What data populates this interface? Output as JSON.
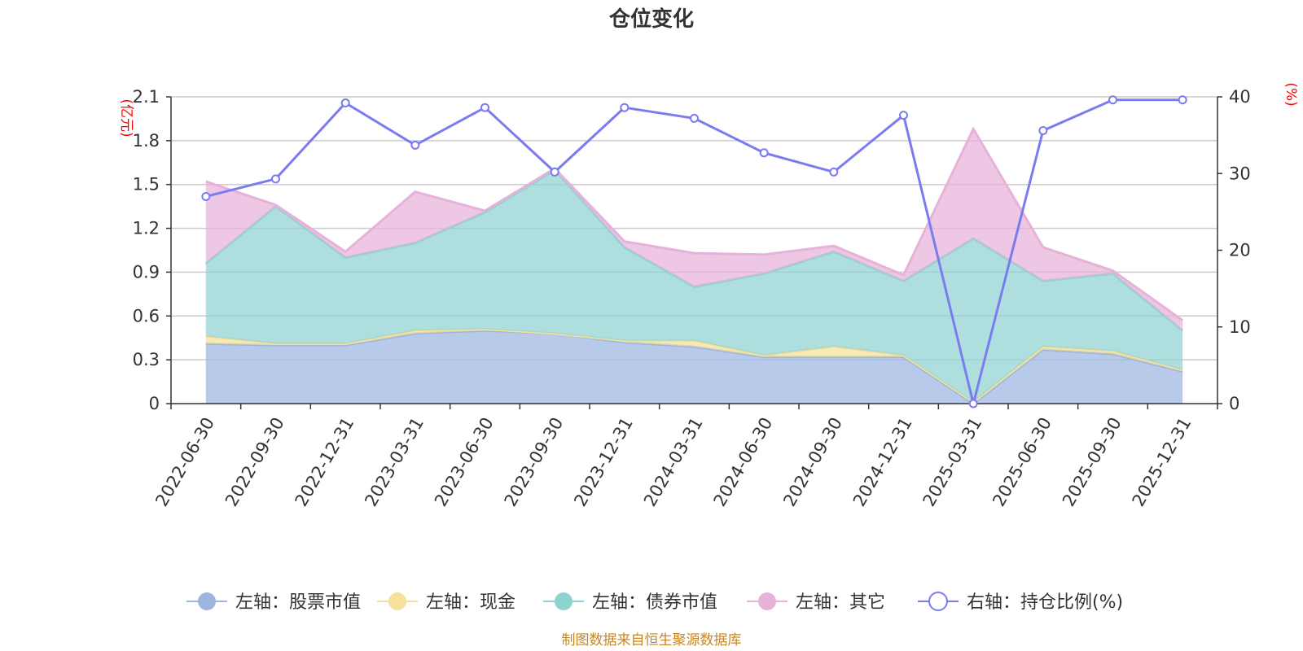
{
  "chart_data": {
    "type": "area",
    "title": "仓位变化",
    "source": "制图数据来自恒生聚源数据库",
    "left_axis": {
      "unit": "(亿元)",
      "ylim": [
        0,
        2.1
      ],
      "ticks": [
        "0",
        "0.3",
        "0.6",
        "0.9",
        "1.2",
        "1.5",
        "1.8",
        "2.1"
      ]
    },
    "right_axis": {
      "unit": "(%)",
      "ylim": [
        0,
        40
      ],
      "ticks": [
        "0",
        "10",
        "20",
        "30",
        "40"
      ]
    },
    "categories": [
      "2022-06-30",
      "2022-09-30",
      "2022-12-31",
      "2023-03-31",
      "2023-06-30",
      "2023-09-30",
      "2023-12-31",
      "2024-03-31",
      "2024-06-30",
      "2024-09-30",
      "2024-12-31",
      "2025-03-31",
      "2025-06-30",
      "2025-09-30",
      "2025-12-31"
    ],
    "series": [
      {
        "name": "左轴：股票市值",
        "axis": "left",
        "type": "stacked-area",
        "color": "#9db6e0",
        "values": [
          0.41,
          0.4,
          0.4,
          0.48,
          0.5,
          0.48,
          0.42,
          0.39,
          0.32,
          0.32,
          0.32,
          0.0,
          0.37,
          0.34,
          0.22
        ]
      },
      {
        "name": "左轴：现金",
        "axis": "left",
        "type": "stacked-area",
        "color": "#f5e19a",
        "values": [
          0.05,
          0.01,
          0.01,
          0.02,
          0.01,
          0.0,
          0.01,
          0.04,
          0.01,
          0.07,
          0.01,
          0.01,
          0.02,
          0.02,
          0.01
        ]
      },
      {
        "name": "左轴：债券市值",
        "axis": "left",
        "type": "stacked-area",
        "color": "#8fd3d1",
        "values": [
          0.5,
          0.94,
          0.59,
          0.6,
          0.8,
          1.12,
          0.64,
          0.37,
          0.56,
          0.65,
          0.51,
          1.12,
          0.45,
          0.53,
          0.27
        ]
      },
      {
        "name": "左轴：其它",
        "axis": "left",
        "type": "stacked-area",
        "color": "#e7b2d9",
        "values": [
          0.56,
          0.01,
          0.04,
          0.35,
          0.01,
          0.01,
          0.04,
          0.23,
          0.13,
          0.04,
          0.04,
          0.75,
          0.23,
          0.02,
          0.07
        ]
      },
      {
        "name": "右轴：持仓比例(%)",
        "axis": "right",
        "type": "line",
        "color": "#7b7bf0",
        "values": [
          27,
          29.3,
          39.2,
          33.7,
          38.6,
          30.2,
          38.6,
          37.2,
          32.7,
          30.2,
          37.6,
          0,
          35.6,
          39.6,
          39.6
        ]
      }
    ]
  }
}
